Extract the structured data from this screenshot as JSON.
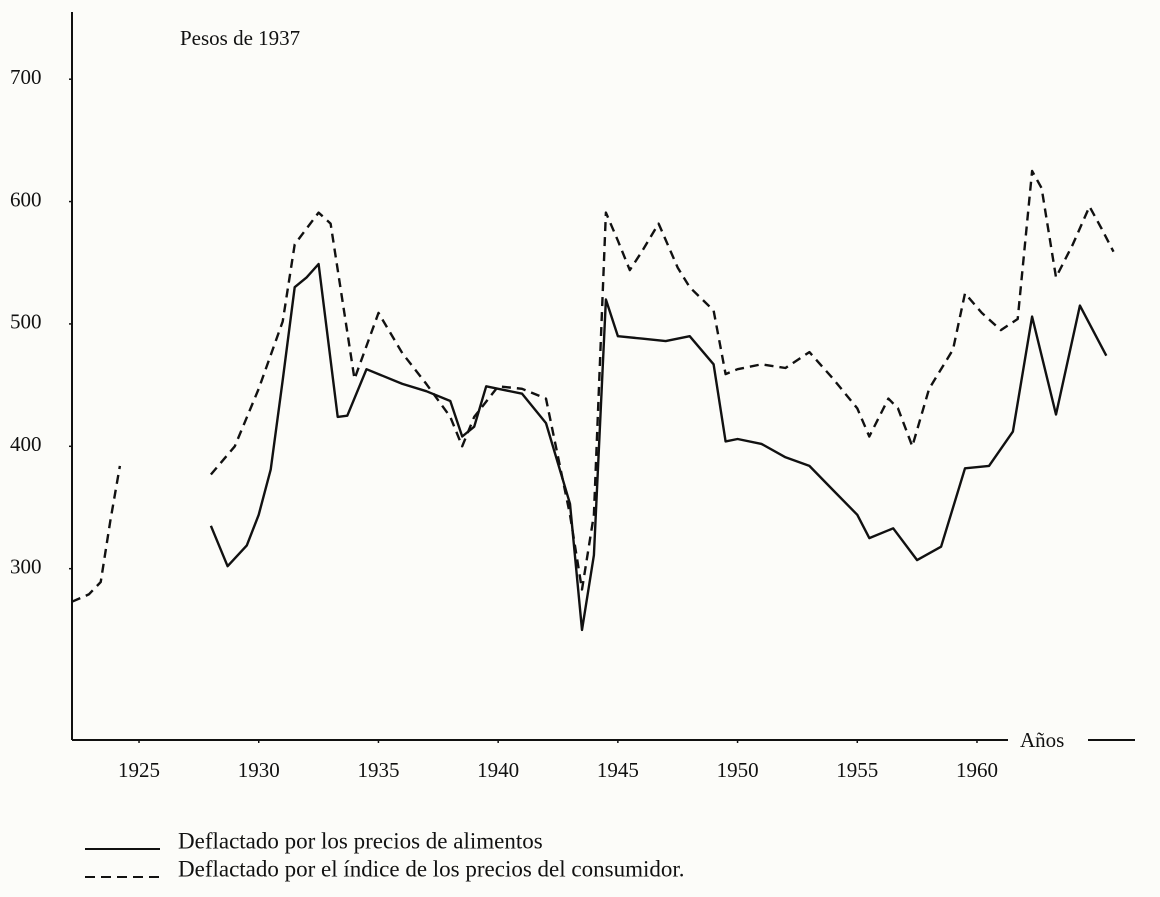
{
  "chart_data": {
    "type": "line",
    "ylabel": "Pesos de 1937",
    "xlabel": "Años",
    "xlim": [
      1922.2,
      1966.6
    ],
    "ylim": [
      160,
      750
    ],
    "xticks": [
      1925,
      1930,
      1935,
      1940,
      1945,
      1950,
      1955,
      1960
    ],
    "yticks": [
      300,
      400,
      500,
      600,
      700
    ],
    "series": [
      {
        "name": "Deflactado por los precios de alimentos",
        "color": "#111111",
        "dash": "solid",
        "x": [
          1928,
          1928.7,
          1929.5,
          1930,
          1930.5,
          1931,
          1931.5,
          1932,
          1932.5,
          1933.3,
          1933.7,
          1934.5,
          1935,
          1936,
          1937,
          1938,
          1938.5,
          1939,
          1939.5,
          1940,
          1941,
          1942,
          1943,
          1943.5,
          1944,
          1944.5,
          1945,
          1946,
          1947,
          1948,
          1949,
          1949.5,
          1950,
          1951,
          1952,
          1953,
          1954,
          1955,
          1955.5,
          1956.5,
          1957.5,
          1958.5,
          1959.5,
          1960.5,
          1961.5,
          1962.3,
          1963.3,
          1964.3,
          1965.4
        ],
        "values": [
          335,
          302,
          319,
          344,
          381,
          454,
          530,
          538,
          549,
          424,
          425,
          463,
          459,
          451,
          445,
          437,
          408,
          416,
          449,
          447,
          443,
          419,
          353,
          250,
          311,
          520,
          490,
          488,
          486,
          490,
          467,
          404,
          406,
          402,
          391,
          384,
          364,
          344,
          325,
          333,
          307,
          318,
          382,
          384,
          412,
          506,
          426,
          515,
          474
        ]
      },
      {
        "name": "Deflactado por el índice de los precios del consumidor.",
        "color": "#111111",
        "dash": "dashed",
        "x": [
          1922.2,
          1922.9,
          1923.4,
          1923.8,
          1924.2,
          1925,
          1928,
          1929,
          1930,
          1931,
          1931.5,
          1932,
          1932.5,
          1933,
          1934,
          1935,
          1936,
          1937,
          1938,
          1938.5,
          1939,
          1940,
          1941,
          1942,
          1943,
          1943.5,
          1944,
          1944.5,
          1945,
          1945.5,
          1946,
          1946.7,
          1947.5,
          1948,
          1949,
          1949.5,
          1950,
          1951,
          1952,
          1953,
          1954,
          1955,
          1955.5,
          1956.3,
          1956.7,
          1957.3,
          1958,
          1959,
          1959.5,
          1960.2,
          1961,
          1961.7,
          1962.3,
          1962.7,
          1963.3,
          1964,
          1964.7,
          1965.2,
          1965.7
        ],
        "values": [
          273,
          279,
          289,
          339,
          384,
          null,
          377,
          400,
          447,
          502,
          565,
          578,
          591,
          582,
          455,
          509,
          476,
          451,
          424,
          400,
          424,
          449,
          447,
          439,
          344,
          283,
          344,
          591,
          568,
          544,
          559,
          582,
          546,
          530,
          511,
          459,
          463,
          467,
          464,
          477,
          455,
          431,
          408,
          439,
          431,
          400,
          447,
          479,
          525,
          509,
          495,
          504,
          625,
          611,
          538,
          565,
          596,
          578,
          559
        ]
      }
    ]
  }
}
